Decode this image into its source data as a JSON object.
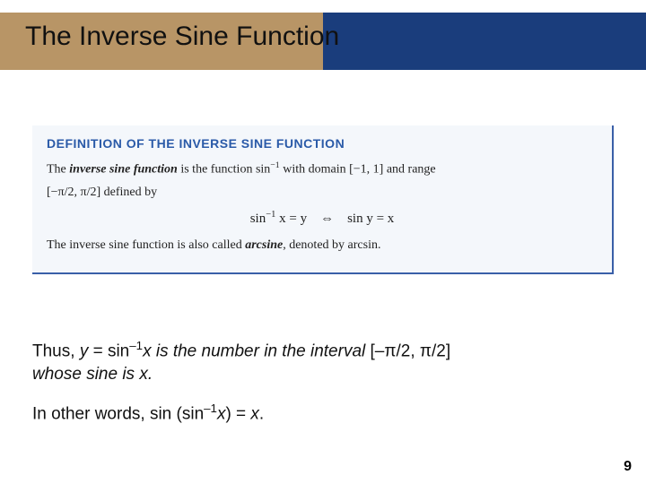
{
  "title": "The Inverse Sine Function",
  "defbox": {
    "heading": "DEFINITION OF THE INVERSE SINE FUNCTION",
    "p1_a": "The ",
    "p1_b": "inverse sine function",
    "p1_c": " is the function sin",
    "p1_sup": "−1",
    "p1_d": " with domain [−1, 1] and range",
    "p2": "[−π/2, π/2] defined by",
    "eq_a": "sin",
    "eq_sup": "−1",
    "eq_b": " x = y    ⇔    sin y = x",
    "p3_a": "The inverse sine function is also called ",
    "p3_b": "arcsine",
    "p3_c": ", denoted by arcsin."
  },
  "thus": {
    "l1_a": "Thus, ",
    "l1_b": "y",
    "l1_c": " = sin",
    "l1_sup": "–1",
    "l1_d": "x is the number in the interval ",
    "l1_e": "[–π/2, π/2]",
    "l2": "whose sine is x."
  },
  "inother": {
    "a": "In other words, sin (sin",
    "sup": "–1",
    "b": "x",
    "c": ") = ",
    "d": "x",
    "e": "."
  },
  "pagenum": "9",
  "colors": {
    "blue_bar": "#1a3d7c",
    "tan_bar": "#b89566",
    "box_bg": "#f4f7fb",
    "box_border": "#3a5fa8",
    "heading_color": "#2a5aa8"
  }
}
